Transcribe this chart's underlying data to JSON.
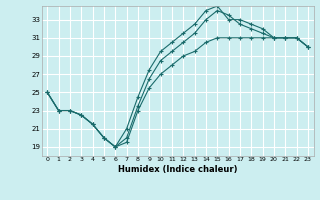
{
  "xlabel": "Humidex (Indice chaleur)",
  "xlim": [
    -0.5,
    23.5
  ],
  "ylim": [
    18.0,
    34.5
  ],
  "xticks": [
    0,
    1,
    2,
    3,
    4,
    5,
    6,
    7,
    8,
    9,
    10,
    11,
    12,
    13,
    14,
    15,
    16,
    17,
    18,
    19,
    20,
    21,
    22,
    23
  ],
  "yticks": [
    19,
    21,
    23,
    25,
    27,
    29,
    31,
    33
  ],
  "bg_color": "#cceef0",
  "line_color": "#1a6b6b",
  "grid_color": "#ffffff",
  "line1_x": [
    0,
    1,
    2,
    3,
    4,
    5,
    6,
    7,
    8,
    9,
    10,
    11,
    12,
    13,
    14,
    15,
    16,
    17,
    18,
    19,
    20,
    21,
    22,
    23
  ],
  "line1_y": [
    25.0,
    23.0,
    23.0,
    22.5,
    21.5,
    20.0,
    19.0,
    19.5,
    23.0,
    25.5,
    27.0,
    28.0,
    29.0,
    29.5,
    30.5,
    31.0,
    31.0,
    31.0,
    31.0,
    31.0,
    31.0,
    31.0,
    31.0,
    30.0
  ],
  "line2_x": [
    0,
    1,
    2,
    3,
    4,
    5,
    6,
    7,
    8,
    9,
    10,
    11,
    12,
    13,
    14,
    15,
    16,
    17,
    18,
    19,
    20,
    21,
    22,
    23
  ],
  "line2_y": [
    25.0,
    23.0,
    23.0,
    22.5,
    21.5,
    20.0,
    19.0,
    21.0,
    24.5,
    27.5,
    29.5,
    30.5,
    31.5,
    32.5,
    34.0,
    34.5,
    33.0,
    33.0,
    32.5,
    32.0,
    31.0,
    31.0,
    31.0,
    30.0
  ],
  "line3_x": [
    0,
    1,
    2,
    3,
    4,
    5,
    6,
    7,
    8,
    9,
    10,
    11,
    12,
    13,
    14,
    15,
    16,
    17,
    18,
    19,
    20,
    21,
    22,
    23
  ],
  "line3_y": [
    25.0,
    23.0,
    23.0,
    22.5,
    21.5,
    20.0,
    19.0,
    20.0,
    23.5,
    26.5,
    28.5,
    29.5,
    30.5,
    31.5,
    33.0,
    34.0,
    33.5,
    32.5,
    32.0,
    31.5,
    31.0,
    31.0,
    31.0,
    30.0
  ]
}
